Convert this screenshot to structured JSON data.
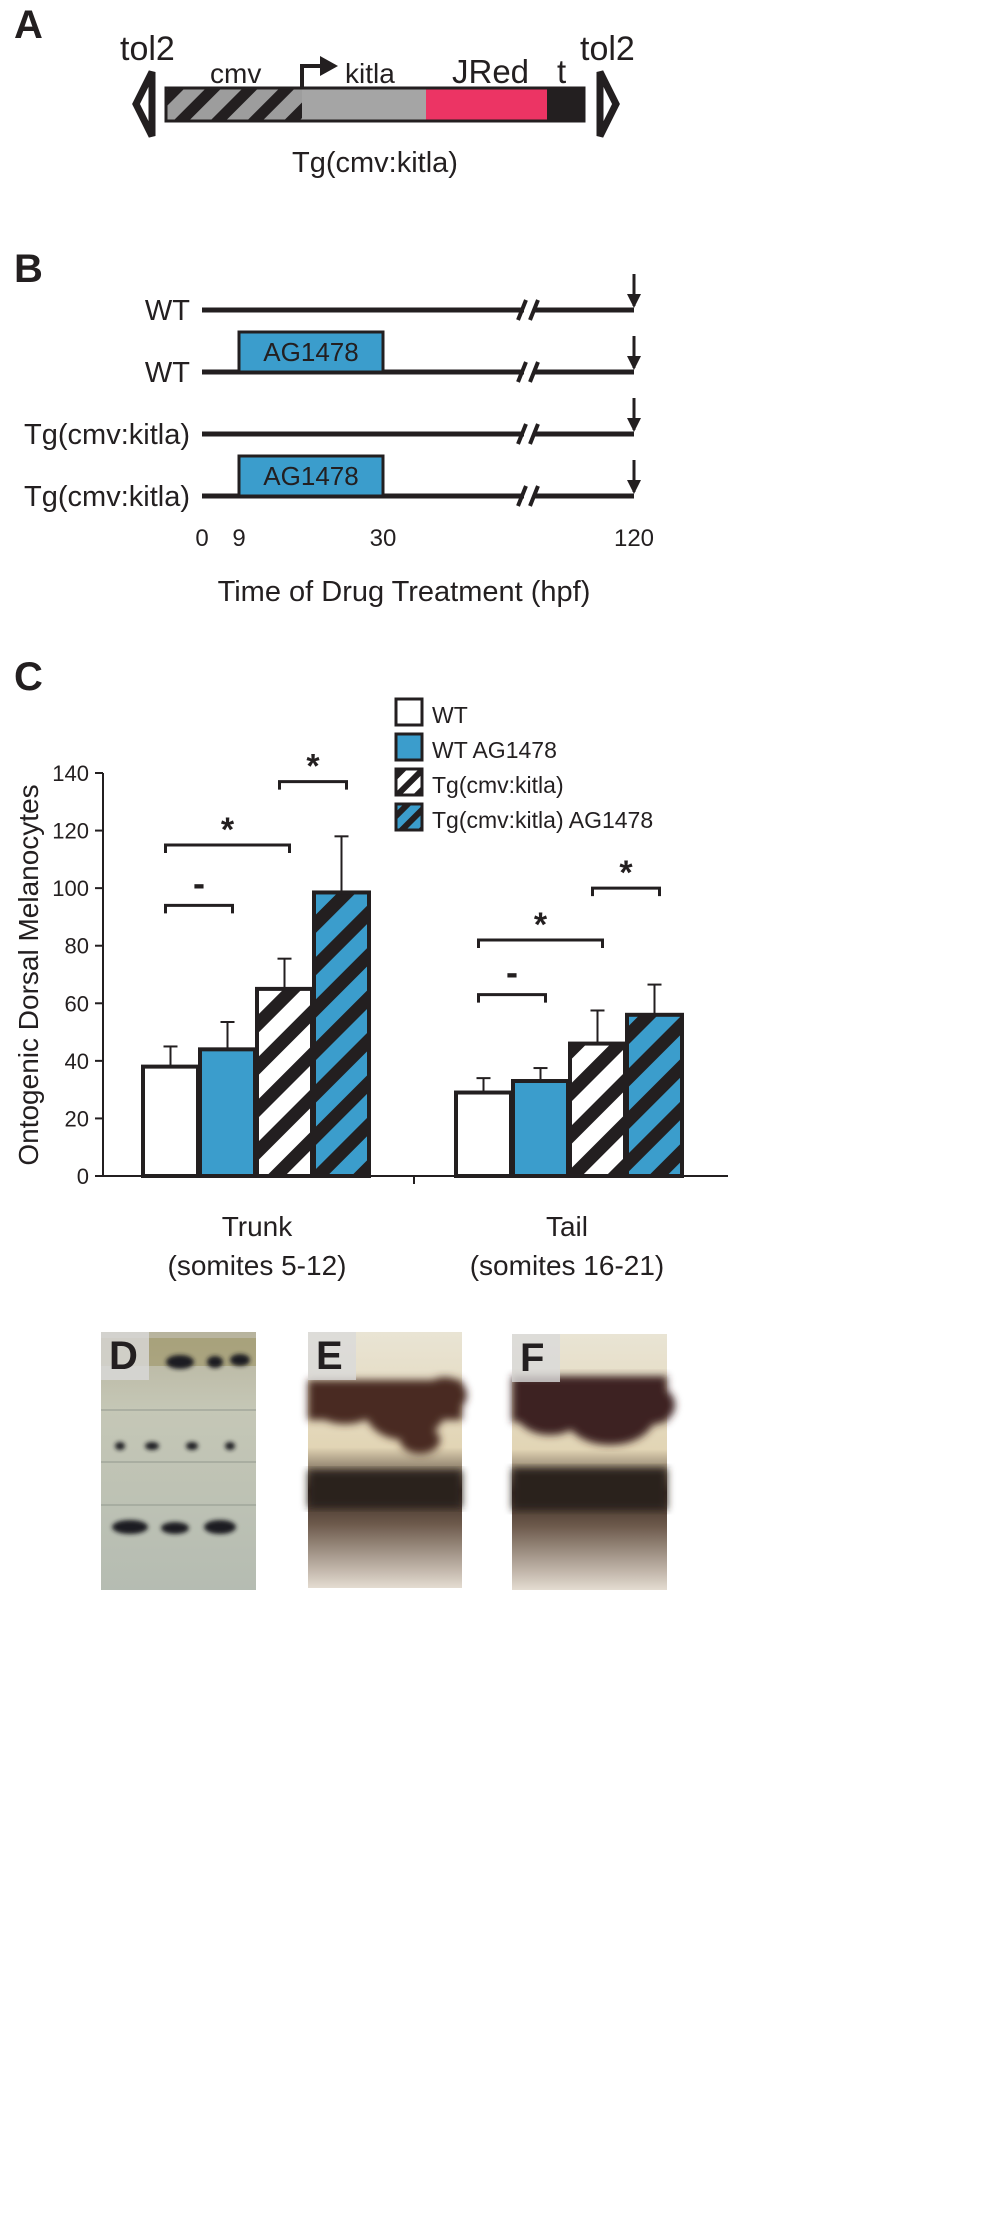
{
  "panel_letters": {
    "a": "A",
    "b": "B",
    "c": "C",
    "d": "D",
    "e": "E",
    "f": "F"
  },
  "construct": {
    "tol2_left": "tol2",
    "tol2_right": "tol2",
    "cmv": "cmv",
    "kitla": "kitla",
    "jred": "JRed",
    "t": "t",
    "name": "Tg(cmv:kitla)",
    "colors": {
      "cmv": "#9d9d9d",
      "kitla": "#a5a5a5",
      "jred": "#ec3464",
      "t": "#231f20"
    }
  },
  "timeline": {
    "rows": [
      {
        "label": "WT",
        "drug": ""
      },
      {
        "label": "WT",
        "drug": "AG1478"
      },
      {
        "label": "Tg(cmv:kitla)",
        "drug": ""
      },
      {
        "label": "Tg(cmv:kitla)",
        "drug": "AG1478"
      }
    ],
    "ticks": [
      "0",
      "9",
      "30",
      "120"
    ],
    "xlabel": "Time of Drug Treatment (hpf)",
    "drug_color": "#3b9dcc"
  },
  "chart_data": {
    "type": "bar",
    "categories": [
      "Trunk\n(somites 5-12)",
      "Tail\n(somites 16-21)"
    ],
    "category_lines": [
      [
        "Trunk",
        "(somites 5-12)"
      ],
      [
        "Tail",
        "(somites 16-21)"
      ]
    ],
    "series": [
      {
        "name": "WT",
        "values": [
          38,
          29
        ],
        "errors": [
          7,
          5
        ],
        "fill": "#ffffff",
        "hatched": false
      },
      {
        "name": "WT AG1478",
        "values": [
          44,
          33
        ],
        "errors": [
          9.5,
          4.5
        ],
        "fill": "#3b9dcc",
        "hatched": false
      },
      {
        "name": "Tg(cmv:kitla)",
        "values": [
          65,
          46
        ],
        "errors": [
          10.5,
          11.5
        ],
        "fill": "#ffffff",
        "hatched": true
      },
      {
        "name": "Tg(cmv:kitla) AG1478",
        "values": [
          98.5,
          56
        ],
        "errors": [
          19.5,
          10.5
        ],
        "fill": "#3b9dcc",
        "hatched": true
      }
    ],
    "ylabel": "Ontogenic Dorsal Melanocytes",
    "xlabel": "",
    "ylim": [
      0,
      140
    ],
    "yticks": [
      "0",
      "20",
      "40",
      "60",
      "80",
      "100",
      "120",
      "140"
    ],
    "legend_position": "top-right",
    "significance": [
      {
        "group": 0,
        "from": 0,
        "to": 1,
        "label": "-",
        "level": 94
      },
      {
        "group": 0,
        "from": 0,
        "to": 2,
        "label": "*",
        "level": 115
      },
      {
        "group": 0,
        "from": 2,
        "to": 3,
        "label": "*",
        "level": 137
      },
      {
        "group": 1,
        "from": 0,
        "to": 1,
        "label": "-",
        "level": 63
      },
      {
        "group": 1,
        "from": 0,
        "to": 2,
        "label": "*",
        "level": 82
      },
      {
        "group": 1,
        "from": 2,
        "to": 3,
        "label": "*",
        "level": 100
      }
    ]
  },
  "photos": [
    "D",
    "E",
    "F"
  ]
}
